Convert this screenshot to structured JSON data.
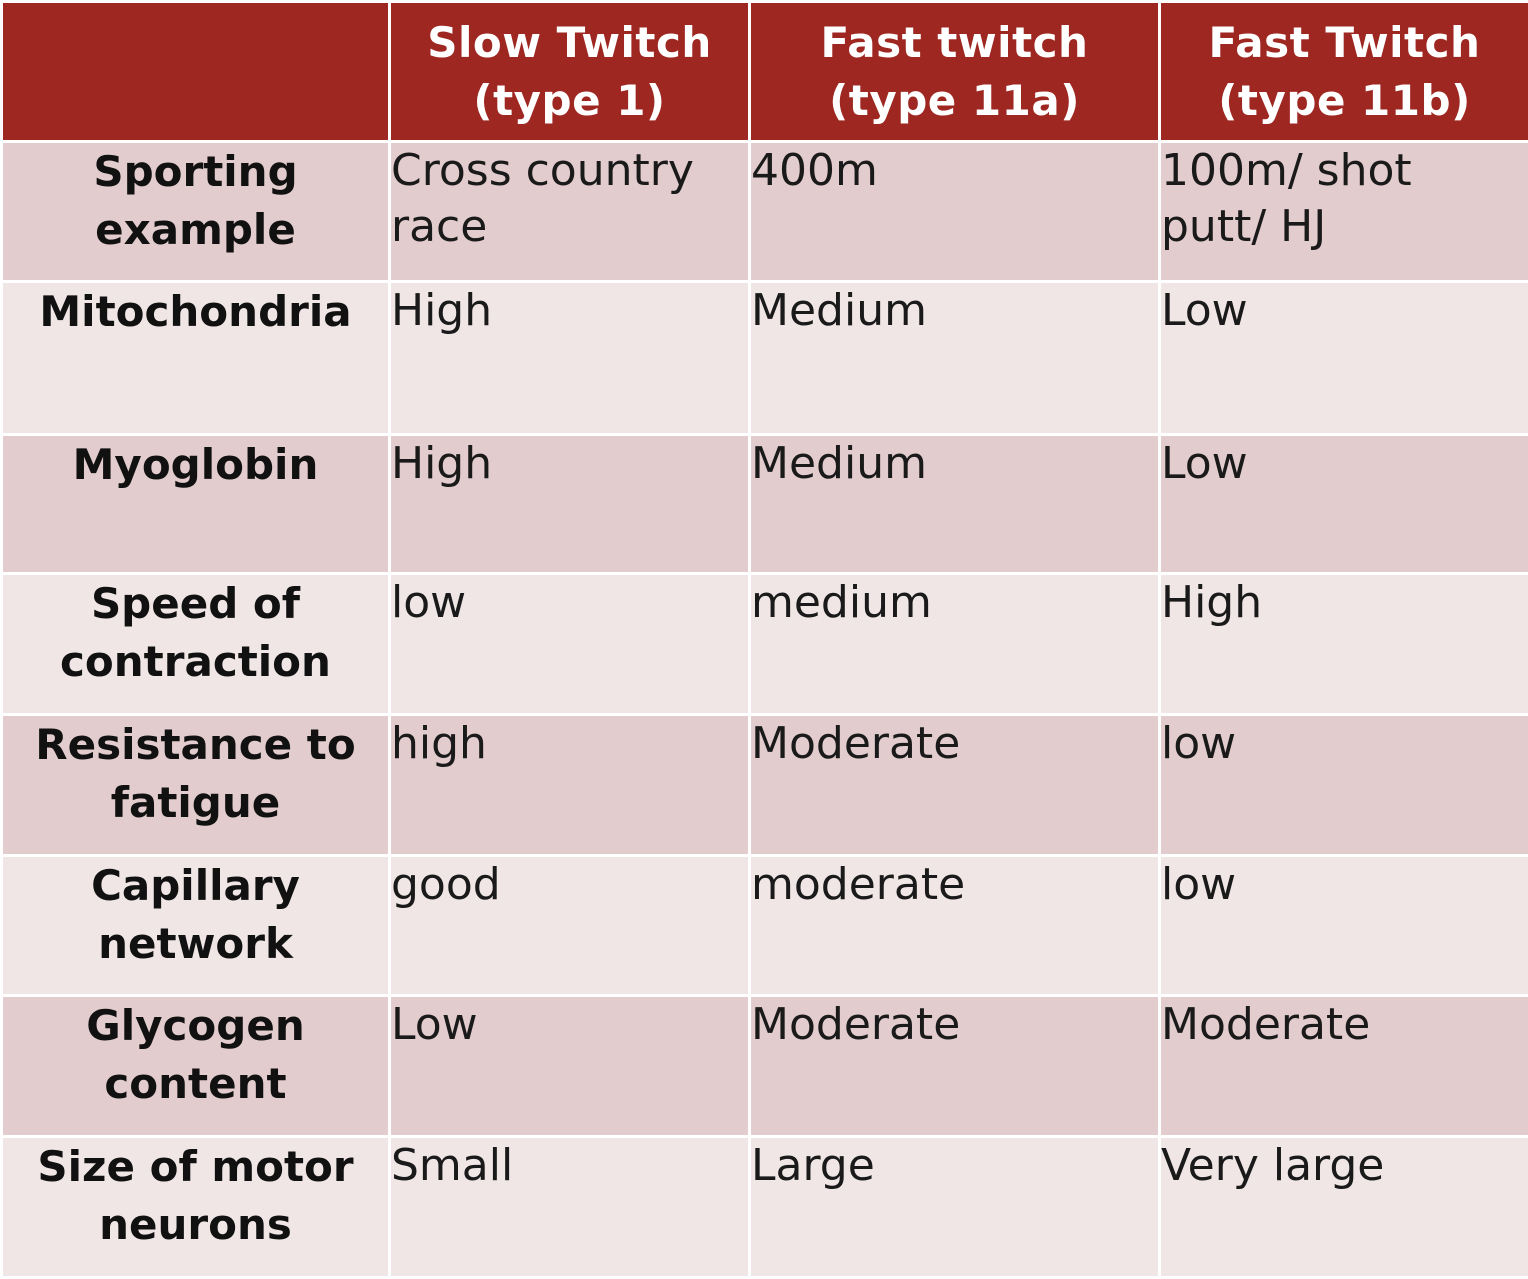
{
  "table": {
    "header": {
      "corner": "",
      "col1": "Slow Twitch\n(type 1)",
      "col2": "Fast twitch\n(type 11a)",
      "col3": "Fast Twitch\n(type 11b)"
    },
    "rows": [
      {
        "label": "Sporting\nexample",
        "c1": "Cross country\nrace",
        "c2": "400m",
        "c3": "100m/ shot\nputt/ HJ"
      },
      {
        "label": "Mitochondria",
        "c1": "High",
        "c2": "Medium",
        "c3": "Low"
      },
      {
        "label": "Myoglobin",
        "c1": "High",
        "c2": "Medium",
        "c3": "Low"
      },
      {
        "label": "Speed of\ncontraction",
        "c1": "low",
        "c2": "medium",
        "c3": "High"
      },
      {
        "label": "Resistance to\nfatigue",
        "c1": "high",
        "c2": "Moderate",
        "c3": "low"
      },
      {
        "label": "Capillary\nnetwork",
        "c1": "good",
        "c2": "moderate",
        "c3": "low"
      },
      {
        "label": "Glycogen\ncontent",
        "c1": "Low",
        "c2": "Moderate",
        "c3": "Moderate"
      },
      {
        "label": "Size of motor\nneurons",
        "c1": "Small",
        "c2": "Large",
        "c3": "Very large"
      }
    ]
  },
  "colors": {
    "header_bg": "#9e2721",
    "header_text": "#ffffff",
    "row_dark": "#e2cccd",
    "row_light": "#f0e6e6"
  }
}
